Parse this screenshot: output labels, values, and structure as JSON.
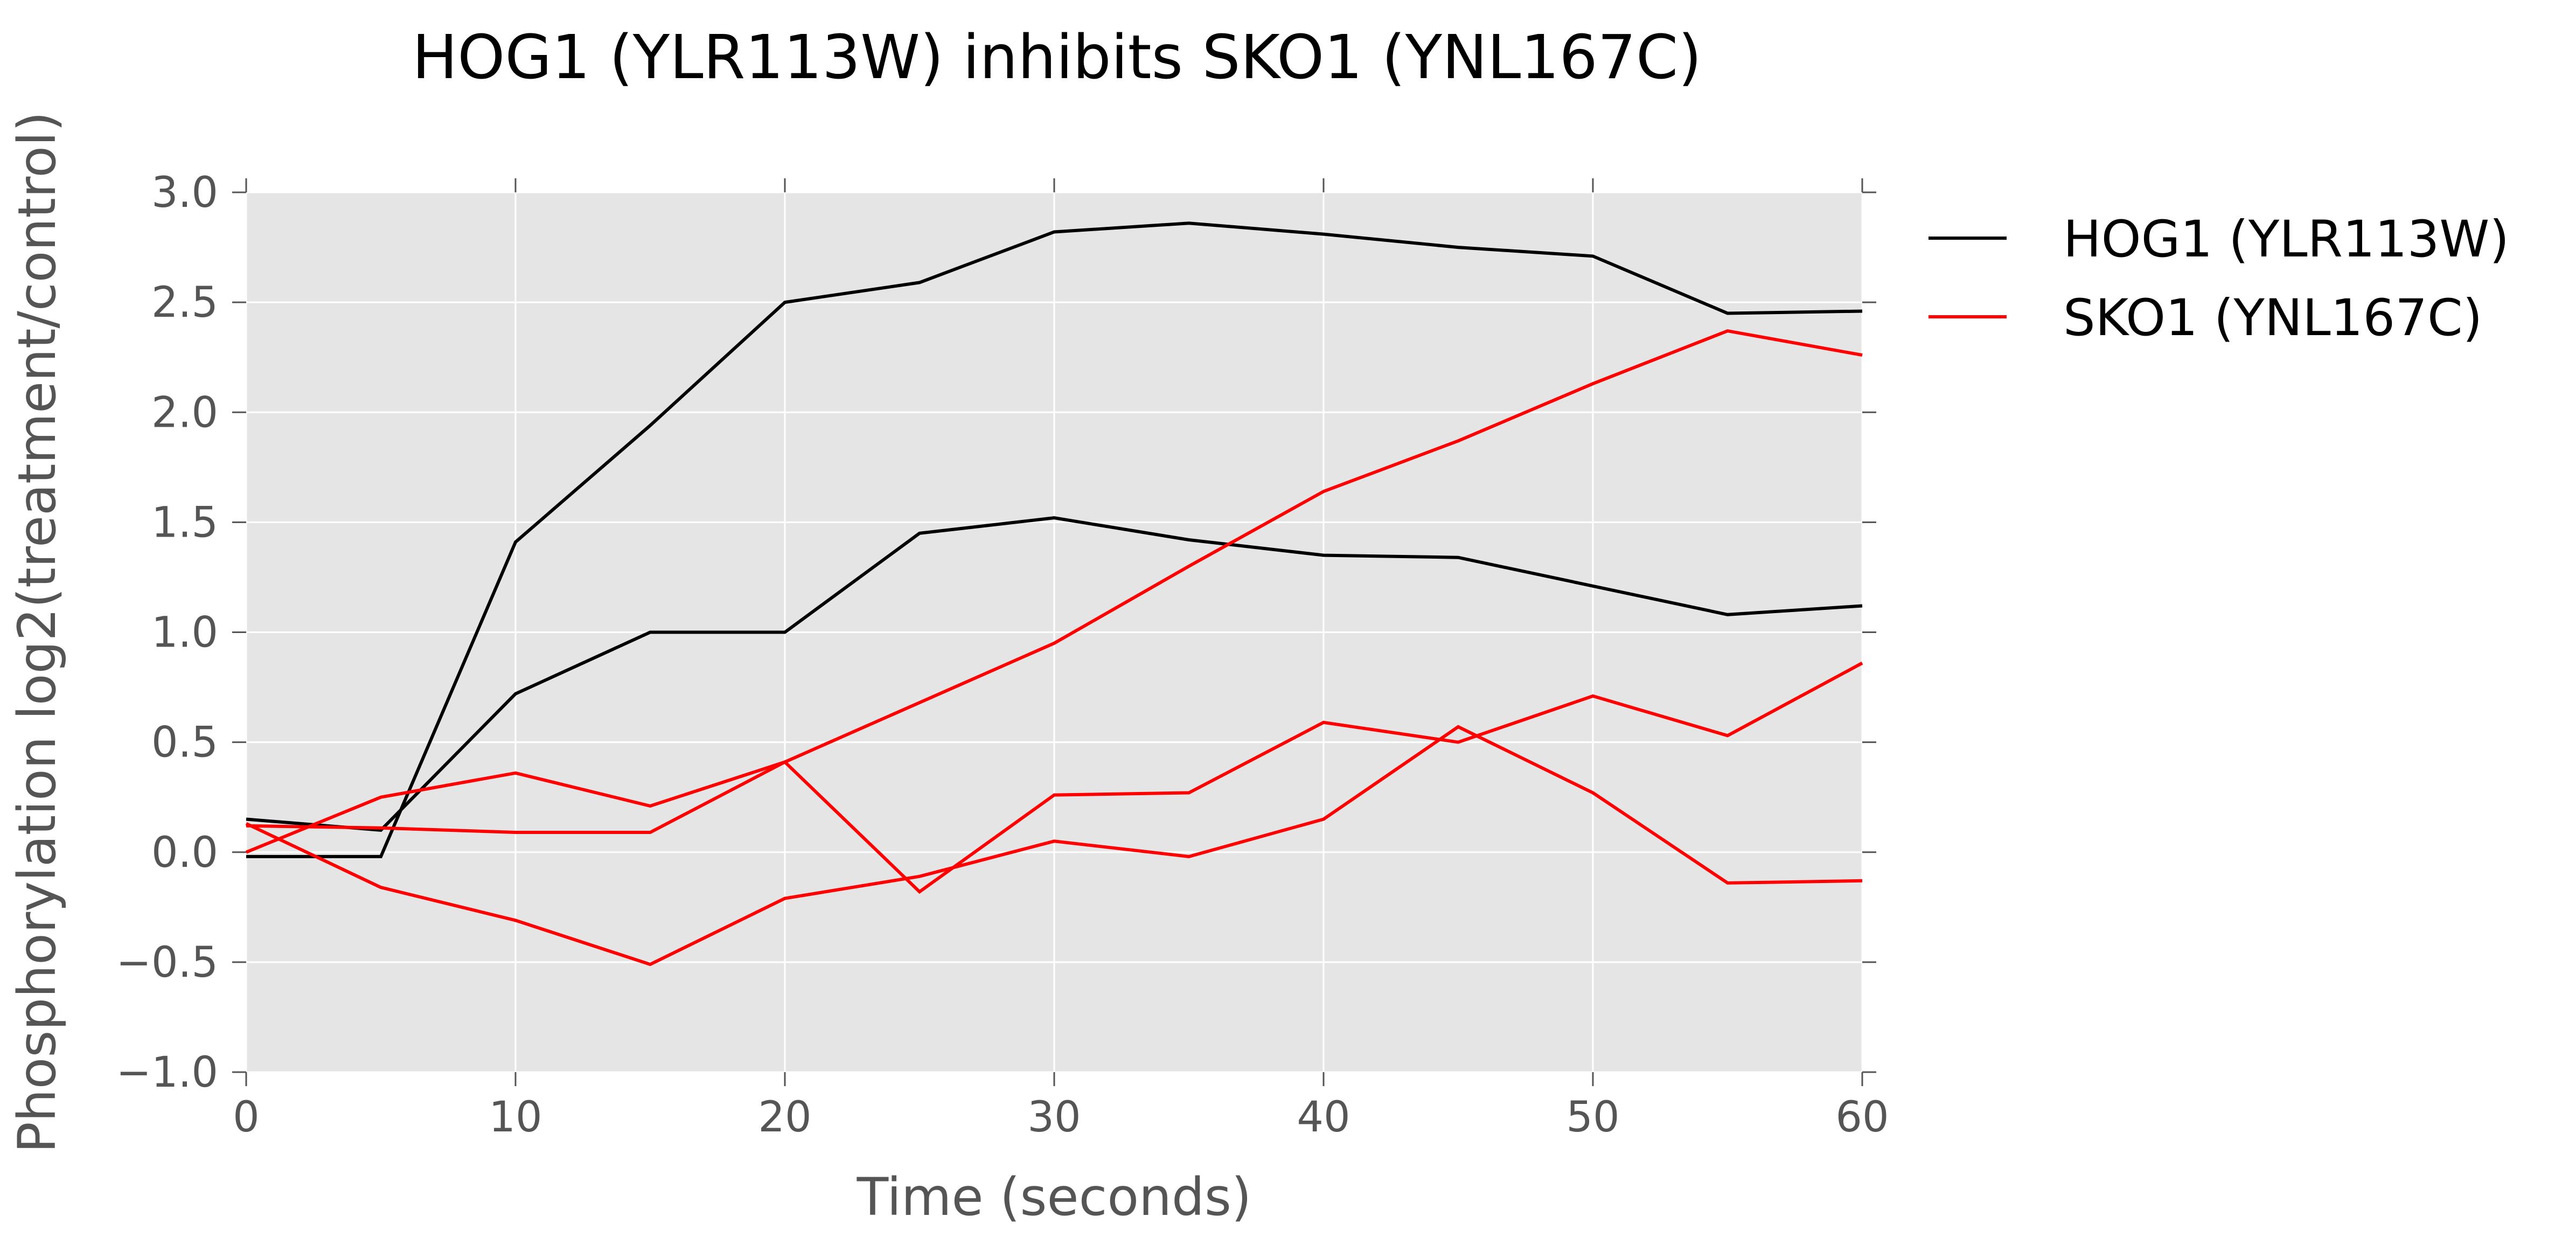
{
  "chart_data": {
    "type": "line",
    "title": "HOG1 (YLR113W) inhibits SKO1 (YNL167C)",
    "xlabel": "Time (seconds)",
    "ylabel": "Phosphorylation log2(treatment/control)",
    "xlim": [
      0,
      60
    ],
    "ylim": [
      -1.0,
      3.0
    ],
    "xticks": [
      0,
      10,
      20,
      30,
      40,
      50,
      60
    ],
    "yticks": [
      -1.0,
      -0.5,
      0.0,
      0.5,
      1.0,
      1.5,
      2.0,
      2.5,
      3.0
    ],
    "xtick_labels": [
      "0",
      "10",
      "20",
      "30",
      "40",
      "50",
      "60"
    ],
    "ytick_labels": [
      "−1.0",
      "−0.5",
      "0.0",
      "0.5",
      "1.0",
      "1.5",
      "2.0",
      "2.5",
      "3.0"
    ],
    "grid": true,
    "legend_position": "outside right, top",
    "legend": [
      {
        "label": "HOG1 (YLR113W)",
        "color": "#000000"
      },
      {
        "label": "SKO1 (YNL167C)",
        "color": "#ff0000"
      }
    ],
    "x": [
      0,
      5,
      10,
      15,
      20,
      25,
      30,
      35,
      40,
      45,
      50,
      55,
      60
    ],
    "series": [
      {
        "name": "HOG1 (YLR113W)",
        "color": "#000000",
        "values": [
          -0.02,
          -0.02,
          1.41,
          1.94,
          2.5,
          2.59,
          2.82,
          2.86,
          2.81,
          2.75,
          2.71,
          2.45,
          2.46
        ]
      },
      {
        "name": "HOG1 (YLR113W)",
        "color": "#000000",
        "values": [
          0.15,
          0.1,
          0.72,
          1.0,
          1.0,
          1.45,
          1.52,
          1.42,
          1.35,
          1.34,
          1.21,
          1.08,
          1.12
        ]
      },
      {
        "name": "SKO1 (YNL167C)",
        "color": "#ff0000",
        "values": [
          0.0,
          0.25,
          0.36,
          0.21,
          0.41,
          0.68,
          0.95,
          1.3,
          1.64,
          1.87,
          2.13,
          2.37,
          2.26
        ]
      },
      {
        "name": "SKO1 (YNL167C)",
        "color": "#ff0000",
        "values": [
          0.12,
          0.11,
          0.09,
          0.09,
          0.41,
          -0.18,
          0.26,
          0.27,
          0.59,
          0.5,
          0.71,
          0.53,
          0.86
        ]
      },
      {
        "name": "SKO1 (YNL167C)",
        "color": "#ff0000",
        "values": [
          0.13,
          -0.16,
          -0.31,
          -0.51,
          -0.21,
          -0.11,
          0.05,
          -0.02,
          0.15,
          0.57,
          0.27,
          -0.14,
          -0.13
        ]
      }
    ]
  }
}
